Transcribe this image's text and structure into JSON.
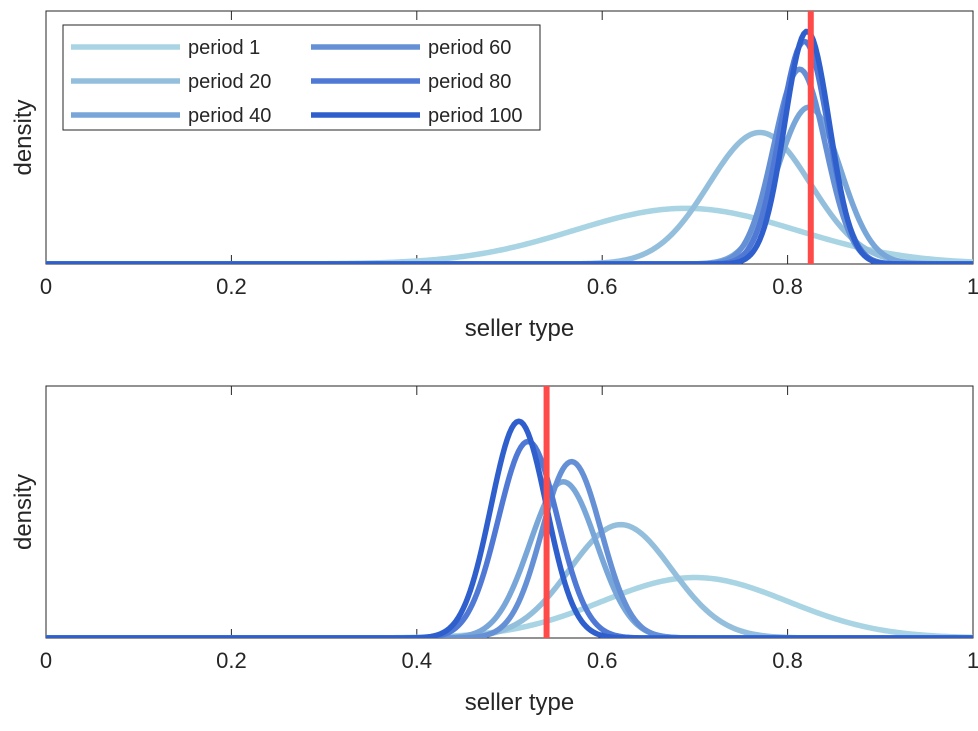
{
  "chart_data": [
    {
      "type": "line",
      "xlabel": "seller type",
      "ylabel": "density",
      "xlim": [
        0,
        1
      ],
      "xticks": [
        "0",
        "0.2",
        "0.4",
        "0.6",
        "0.8",
        "1"
      ],
      "yticks_shown": false,
      "grid": false,
      "legend": {
        "placement": "top-left",
        "columns": 2
      },
      "true_type_line": {
        "x": 0.825,
        "color": "#ff4a4a"
      },
      "series": [
        {
          "name": "period 1",
          "color": "#a8d4e3",
          "mean": 0.69,
          "sd": 0.12,
          "peak": 0.22
        },
        {
          "name": "period 20",
          "color": "#94bfdc",
          "mean": 0.77,
          "sd": 0.055,
          "peak": 0.52
        },
        {
          "name": "period 40",
          "color": "#78a6d8",
          "mean": 0.823,
          "sd": 0.034,
          "peak": 0.62
        },
        {
          "name": "period 60",
          "color": "#6590d6",
          "mean": 0.813,
          "sd": 0.028,
          "peak": 0.77
        },
        {
          "name": "period 80",
          "color": "#4f79d4",
          "mean": 0.818,
          "sd": 0.026,
          "peak": 0.88
        },
        {
          "name": "period 100",
          "color": "#2f5fcc",
          "mean": 0.821,
          "sd": 0.024,
          "peak": 0.92
        }
      ]
    },
    {
      "type": "line",
      "xlabel": "seller type",
      "ylabel": "density",
      "xlim": [
        0,
        1
      ],
      "xticks": [
        "0",
        "0.2",
        "0.4",
        "0.6",
        "0.8",
        "1"
      ],
      "yticks_shown": false,
      "grid": false,
      "true_type_line": {
        "x": 0.54,
        "color": "#ff4a4a"
      },
      "series": [
        {
          "name": "period 1",
          "color": "#a8d4e3",
          "mean": 0.7,
          "sd": 0.1,
          "peak": 0.24
        },
        {
          "name": "period 20",
          "color": "#94bfdc",
          "mean": 0.62,
          "sd": 0.055,
          "peak": 0.45
        },
        {
          "name": "period 40",
          "color": "#78a6d8",
          "mean": 0.558,
          "sd": 0.036,
          "peak": 0.62
        },
        {
          "name": "period 60",
          "color": "#6590d6",
          "mean": 0.567,
          "sd": 0.032,
          "peak": 0.7
        },
        {
          "name": "period 80",
          "color": "#4f79d4",
          "mean": 0.52,
          "sd": 0.032,
          "peak": 0.78
        },
        {
          "name": "period 100",
          "color": "#2f5fcc",
          "mean": 0.51,
          "sd": 0.03,
          "peak": 0.86
        }
      ]
    }
  ]
}
